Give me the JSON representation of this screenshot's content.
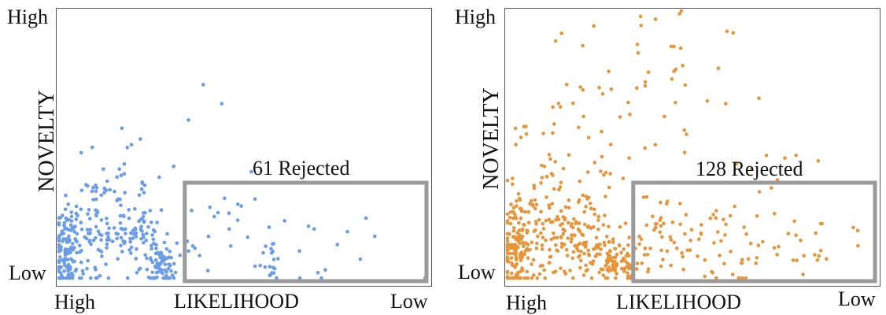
{
  "chart_data": [
    {
      "type": "scatter",
      "color": "#6a9ce8",
      "xlabel": "LIKELIHOOD",
      "ylabel": "NOVELTY",
      "x_ticks": {
        "left": "High",
        "right": "Low"
      },
      "y_ticks": {
        "top": "High",
        "bottom": "Low"
      },
      "xlim": [
        0,
        1
      ],
      "ylim": [
        0,
        1
      ],
      "rejected_label": "61 Rejected",
      "rejected_region": {
        "x": [
          0.34,
          1.0
        ],
        "y": [
          0.0,
          0.37
        ]
      },
      "clusters": [
        {
          "cx": 0.02,
          "cy": 0.12,
          "sx": 0.02,
          "sy": 0.09,
          "n": 110
        },
        {
          "cx": 0.08,
          "cy": 0.18,
          "sx": 0.04,
          "sy": 0.12,
          "n": 70
        },
        {
          "cx": 0.16,
          "cy": 0.22,
          "sx": 0.04,
          "sy": 0.12,
          "n": 75
        },
        {
          "cx": 0.23,
          "cy": 0.18,
          "sx": 0.03,
          "sy": 0.09,
          "n": 45
        },
        {
          "cx": 0.28,
          "cy": 0.07,
          "sx": 0.02,
          "sy": 0.04,
          "n": 65
        },
        {
          "cx": 0.4,
          "cy": 0.15,
          "sx": 0.07,
          "sy": 0.1,
          "n": 18
        },
        {
          "cx": 0.57,
          "cy": 0.08,
          "sx": 0.015,
          "sy": 0.05,
          "n": 20
        },
        {
          "cx": 0.75,
          "cy": 0.1,
          "sx": 0.1,
          "sy": 0.08,
          "n": 8
        }
      ],
      "outliers": [
        [
          0.39,
          0.73
        ],
        [
          0.44,
          0.66
        ],
        [
          0.35,
          0.6
        ],
        [
          0.17,
          0.57
        ],
        [
          0.22,
          0.53
        ],
        [
          0.09,
          0.5
        ],
        [
          0.06,
          0.48
        ],
        [
          0.31,
          0.43
        ],
        [
          0.52,
          0.41
        ],
        [
          0.12,
          0.42
        ],
        [
          0.83,
          0.24
        ],
        [
          0.78,
          0.19
        ],
        [
          0.69,
          0.2
        ],
        [
          0.43,
          0.26
        ],
        [
          0.53,
          0.31
        ],
        [
          0.72,
          0.05
        ],
        [
          0.7,
          0.04
        ],
        [
          0.46,
          0.2
        ],
        [
          0.51,
          0.17
        ],
        [
          0.61,
          0.23
        ]
      ]
    },
    {
      "type": "scatter",
      "color": "#e8953a",
      "xlabel": "LIKELIHOOD",
      "ylabel": "NOVELTY",
      "x_ticks": {
        "left": "High",
        "right": "Low"
      },
      "y_ticks": {
        "top": "High",
        "bottom": "Low"
      },
      "xlim": [
        0,
        1
      ],
      "ylim": [
        0,
        1
      ],
      "rejected_label": "128 Rejected",
      "rejected_region": {
        "x": [
          0.34,
          1.0
        ],
        "y": [
          0.0,
          0.37
        ]
      },
      "clusters": [
        {
          "cx": 0.02,
          "cy": 0.12,
          "sx": 0.025,
          "sy": 0.08,
          "n": 120
        },
        {
          "cx": 0.1,
          "cy": 0.2,
          "sx": 0.06,
          "sy": 0.1,
          "n": 110
        },
        {
          "cx": 0.2,
          "cy": 0.16,
          "sx": 0.05,
          "sy": 0.08,
          "n": 90
        },
        {
          "cx": 0.3,
          "cy": 0.08,
          "sx": 0.03,
          "sy": 0.04,
          "n": 85
        },
        {
          "cx": 0.18,
          "cy": 0.45,
          "sx": 0.1,
          "sy": 0.2,
          "n": 45
        },
        {
          "cx": 0.38,
          "cy": 0.7,
          "sx": 0.09,
          "sy": 0.2,
          "n": 35
        },
        {
          "cx": 0.45,
          "cy": 0.16,
          "sx": 0.07,
          "sy": 0.08,
          "n": 55
        },
        {
          "cx": 0.62,
          "cy": 0.15,
          "sx": 0.1,
          "sy": 0.09,
          "n": 40
        },
        {
          "cx": 0.8,
          "cy": 0.14,
          "sx": 0.09,
          "sy": 0.08,
          "n": 20
        }
      ],
      "outliers": [
        [
          0.36,
          0.98
        ],
        [
          0.4,
          0.97
        ],
        [
          0.47,
          1.0
        ],
        [
          0.61,
          0.92
        ],
        [
          0.45,
          0.87
        ],
        [
          0.57,
          0.79
        ],
        [
          0.54,
          0.67
        ],
        [
          0.59,
          0.66
        ],
        [
          0.68,
          0.68
        ],
        [
          0.7,
          0.47
        ],
        [
          0.75,
          0.46
        ],
        [
          0.78,
          0.47
        ],
        [
          0.62,
          0.44
        ],
        [
          0.13,
          0.89
        ],
        [
          0.16,
          0.73
        ],
        [
          0.66,
          0.42
        ],
        [
          0.84,
          0.45
        ],
        [
          0.73,
          0.38
        ]
      ]
    }
  ]
}
